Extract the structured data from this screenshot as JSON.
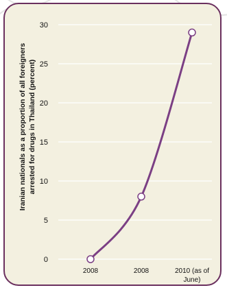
{
  "chart_data": {
    "type": "line",
    "categories": [
      "2008",
      "2008",
      "2010 (as of June)"
    ],
    "category_lines": [
      [
        "2008"
      ],
      [
        "2008"
      ],
      [
        "2010 (as of",
        "June)"
      ]
    ],
    "series": [
      {
        "values": [
          0,
          8,
          29
        ]
      }
    ],
    "ylabel": "Iranian nationals as a proportion of all foreigners arrested for drugs in Thailand (percent)",
    "ylabel_lines": [
      "Iranian nationals as a proportion of all foreigners",
      "arrested for drugs in Thailand (percent)"
    ],
    "ylim": [
      0,
      30
    ],
    "yticks": [
      0,
      5,
      10,
      15,
      20,
      25,
      30
    ],
    "grid": true,
    "colors": {
      "line": "#7b3f84",
      "frame": "#6a2f5e",
      "background": "#f3f0e0",
      "grid": "#ffffff",
      "marker_fill": "#ffffff"
    }
  }
}
